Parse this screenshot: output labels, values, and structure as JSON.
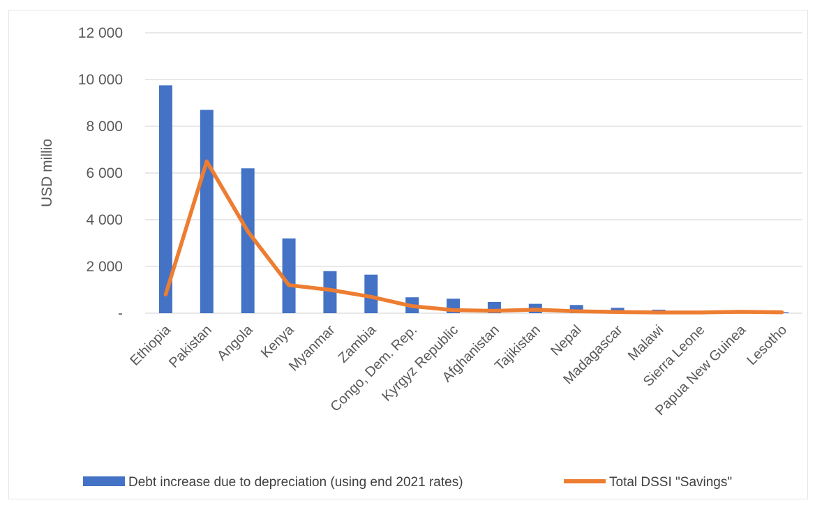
{
  "chart_data": {
    "type": "bar",
    "title": "",
    "xlabel": "",
    "ylabel": "USD millio",
    "ylim": [
      0,
      12000
    ],
    "y_ticks": [
      0,
      2000,
      4000,
      6000,
      8000,
      10000,
      12000
    ],
    "y_tick_labels": [
      "-",
      "2 000",
      "4 000",
      "6 000",
      "8 000",
      "10 000",
      "12 000"
    ],
    "grid": true,
    "legend_position": "bottom",
    "categories": [
      "Ethiopia",
      "Pakistan",
      "Angola",
      "Kenya",
      "Myanmar",
      "Zambia",
      "Congo, Dem. Rep.",
      "Kyrgyz Republic",
      "Afghanistan",
      "Tajikistan",
      "Nepal",
      "Madagascar",
      "Malawi",
      "Sierra Leone",
      "Papua New Guinea",
      "Lesotho"
    ],
    "series": [
      {
        "name": "Debt increase due to depreciation (using end 2021 rates)",
        "type": "bar",
        "color": "#4472c4",
        "values": [
          9750,
          8700,
          6200,
          3200,
          1800,
          1650,
          680,
          620,
          480,
          400,
          350,
          230,
          150,
          30,
          50,
          40
        ]
      },
      {
        "name": "Total DSSI \"Savings\"",
        "type": "line",
        "color": "#ed7d31",
        "values": [
          800,
          6500,
          3500,
          1200,
          1000,
          700,
          300,
          130,
          100,
          150,
          80,
          50,
          30,
          30,
          60,
          40
        ]
      }
    ]
  }
}
